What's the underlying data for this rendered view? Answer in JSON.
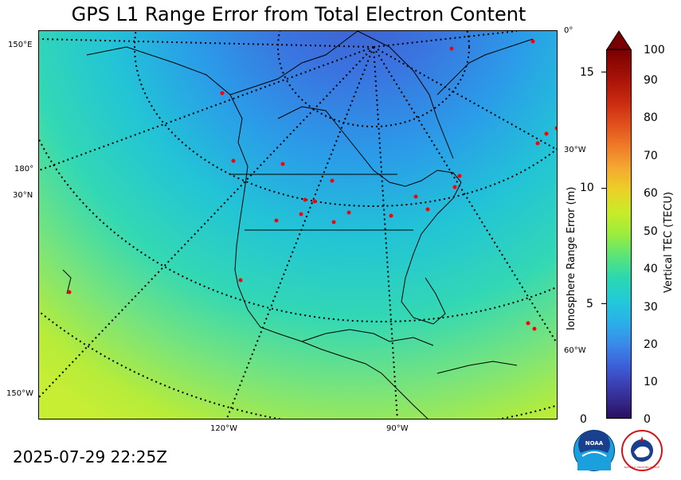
{
  "title": "GPS L1 Range Error from Total Electron Content",
  "timestamp": "2025-07-29 22:25Z",
  "map": {
    "graticule_labels": {
      "lon_150E": "150°E",
      "lon_180": "180°",
      "lat_30N": "30°N",
      "lon_150W": "150°W",
      "lon_0": "0°",
      "lon_30W": "30°W",
      "lon_60W": "60°W",
      "lon_120W": "120°W",
      "lon_90W": "90°W"
    },
    "colors": {
      "high_lat": "#3a6fd8",
      "mid_lat": "#27b4d8",
      "low_lat": "#b8ec3a",
      "coast": "#000000",
      "station": "#ff0000"
    }
  },
  "left_axis": {
    "label": "Ionosphere Range Error (m)",
    "ticks": [
      "0",
      "5",
      "10",
      "15"
    ]
  },
  "right_axis": {
    "label": "Vertical TEC (TECU)",
    "ticks": [
      "0",
      "10",
      "20",
      "30",
      "40",
      "50",
      "60",
      "70",
      "80",
      "90",
      "100"
    ]
  },
  "logos": {
    "noaa": "NOAA",
    "nws": "NATIONAL WEATHER SERVICE"
  }
}
